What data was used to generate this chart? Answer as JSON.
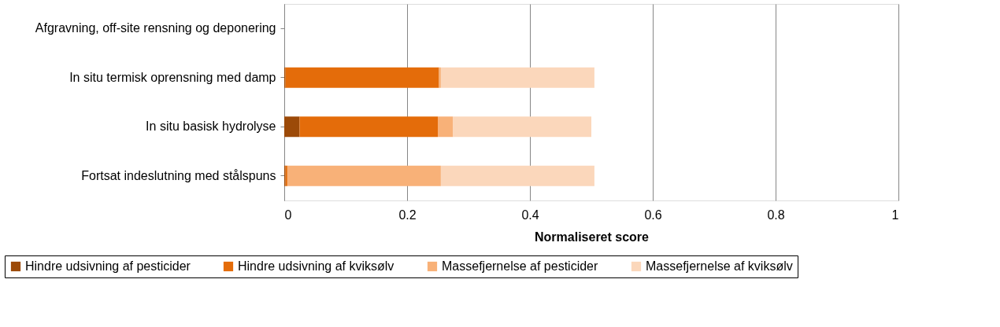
{
  "chart_data": {
    "type": "bar",
    "orientation": "horizontal",
    "stacked": true,
    "categories": [
      "Afgravning, off-site rensning og deponering",
      "In situ termisk oprensning med damp",
      "In situ basisk hydrolyse",
      "Fortsat indeslutning med stålspuns"
    ],
    "series": [
      {
        "name": "Hindre udsivning af pesticider",
        "color": "#9c4a08",
        "values": [
          0,
          0.002,
          0.025,
          0.002
        ]
      },
      {
        "name": "Hindre udsivning af kviksølv",
        "color": "#e46c0a",
        "values": [
          0,
          0.25,
          0.225,
          0.003
        ]
      },
      {
        "name": "Massefjernelse af pesticider",
        "color": "#f8b178",
        "values": [
          0,
          0.003,
          0.025,
          0.25
        ]
      },
      {
        "name": "Massefjernelse af kviksølv",
        "color": "#fbd7bb",
        "values": [
          0,
          0.25,
          0.225,
          0.25
        ]
      }
    ],
    "xlabel": "Normaliseret score",
    "xlim": [
      0,
      1
    ],
    "xticks": [
      0,
      0.2,
      0.4,
      0.6,
      0.8,
      1
    ],
    "grid": "x",
    "legend": "bottom"
  }
}
